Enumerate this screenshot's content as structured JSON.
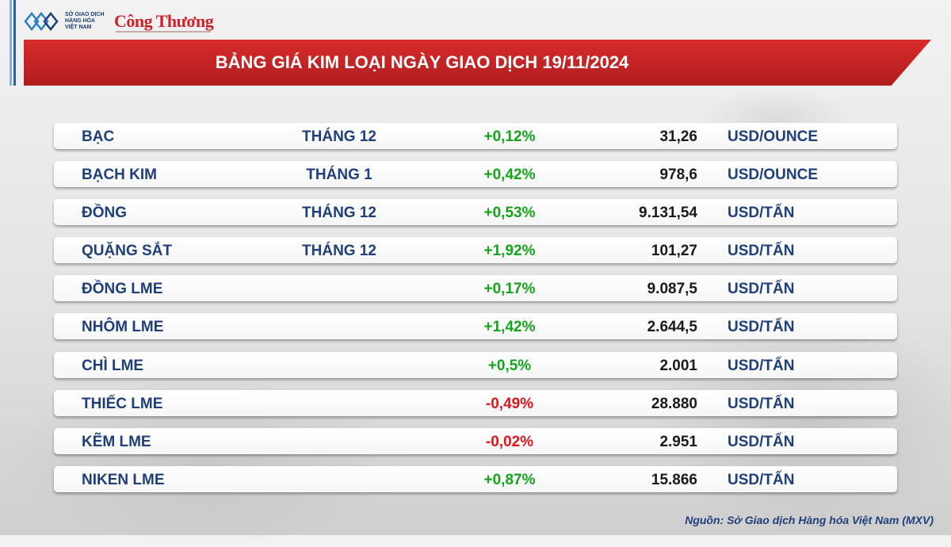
{
  "logo": {
    "org_text": "SỞ GIAO DỊCH HÀNG HÓA VIỆT NAM",
    "partner": "Công Thương"
  },
  "title": "BẢNG GIÁ KIM LOẠI NGÀY GIAO DỊCH 19/11/2024",
  "rows": [
    {
      "name": "BẠC",
      "month": "THÁNG 12",
      "change": "+0,12%",
      "direction": "up",
      "price": "31,26",
      "unit": "USD/OUNCE"
    },
    {
      "name": "BẠCH KIM",
      "month": "THÁNG 1",
      "change": "+0,42%",
      "direction": "up",
      "price": "978,6",
      "unit": "USD/OUNCE"
    },
    {
      "name": "ĐỒNG",
      "month": "THÁNG 12",
      "change": "+0,53%",
      "direction": "up",
      "price": "9.131,54",
      "unit": "USD/TẤN"
    },
    {
      "name": "QUẶNG SẮT",
      "month": "THÁNG 12",
      "change": "+1,92%",
      "direction": "up",
      "price": "101,27",
      "unit": "USD/TẤN"
    },
    {
      "name": "ĐỒNG LME",
      "month": "",
      "change": "+0,17%",
      "direction": "up",
      "price": "9.087,5",
      "unit": "USD/TẤN"
    },
    {
      "name": "NHÔM LME",
      "month": "",
      "change": "+1,42%",
      "direction": "up",
      "price": "2.644,5",
      "unit": "USD/TẤN"
    },
    {
      "name": "CHÌ LME",
      "month": "",
      "change": "+0,5%",
      "direction": "up",
      "price": "2.001",
      "unit": "USD/TẤN"
    },
    {
      "name": "THIẾC LME",
      "month": "",
      "change": "-0,49%",
      "direction": "down",
      "price": "28.880",
      "unit": "USD/TẤN"
    },
    {
      "name": "KẼM LME",
      "month": "",
      "change": "-0,02%",
      "direction": "down",
      "price": "2.951",
      "unit": "USD/TẤN"
    },
    {
      "name": "NIKEN LME",
      "month": "",
      "change": "+0,87%",
      "direction": "up",
      "price": "15.866",
      "unit": "USD/TẤN"
    }
  ],
  "source": "Nguồn: Sở Giao dịch Hàng hóa Việt Nam (MXV)",
  "colors": {
    "up": "#12a51a",
    "down": "#e0141b",
    "banner": "#c62427",
    "text": "#1f3f7a"
  }
}
